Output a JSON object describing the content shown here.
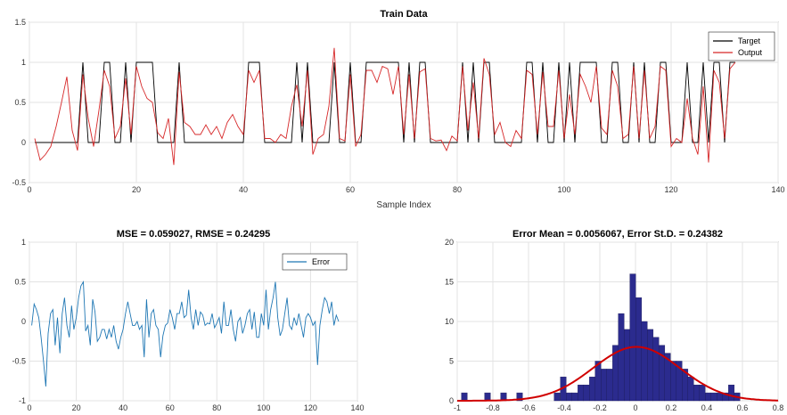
{
  "chart_data": [
    {
      "id": "train",
      "type": "line",
      "title": "Train Data",
      "xlabel": "Sample Index",
      "ylabel": "",
      "xlim": [
        0,
        140
      ],
      "ylim": [
        -0.5,
        1.5
      ],
      "xticks": [
        0,
        20,
        40,
        60,
        80,
        100,
        120,
        140
      ],
      "yticks": [
        -0.5,
        0,
        0.5,
        1,
        1.5
      ],
      "grid": true,
      "legend": "top-right",
      "series": [
        {
          "name": "Target",
          "color": "#000000",
          "values": [
            0,
            0,
            0,
            0,
            0,
            0,
            0,
            0,
            0,
            1,
            0,
            0,
            0,
            1,
            1,
            0,
            0,
            1,
            0,
            1,
            1,
            1,
            1,
            0,
            0,
            0,
            0,
            1,
            0,
            0,
            0,
            0,
            0,
            0,
            0,
            0,
            0,
            0,
            0,
            0,
            1,
            1,
            1,
            0,
            0,
            0,
            0,
            0,
            0,
            1,
            0,
            1,
            0,
            0,
            0,
            0,
            1,
            0,
            0,
            1,
            0,
            0,
            1,
            1,
            1,
            1,
            1,
            1,
            1,
            0,
            1,
            0,
            1,
            1,
            0,
            0,
            0,
            0,
            0,
            0,
            1,
            0,
            1,
            0,
            1,
            1,
            0,
            0,
            0,
            0,
            0,
            0,
            1,
            1,
            0,
            1,
            0,
            0,
            1,
            0,
            1,
            0,
            1,
            1,
            1,
            1,
            0,
            0,
            1,
            1,
            0,
            0,
            1,
            0,
            1,
            0,
            0,
            1,
            1,
            0,
            0,
            0,
            1,
            0,
            0,
            1,
            0,
            1,
            1,
            0,
            1,
            1
          ]
        },
        {
          "name": "Output",
          "color": "#d62728",
          "values": [
            0.05,
            -0.22,
            -0.15,
            -0.05,
            0.2,
            0.5,
            0.82,
            0.15,
            -0.1,
            0.85,
            0.3,
            -0.05,
            0.4,
            0.9,
            0.7,
            0.05,
            0.2,
            0.8,
            0.1,
            0.95,
            0.7,
            0.55,
            0.5,
            0.12,
            0.05,
            0.3,
            -0.28,
            0.88,
            0.25,
            0.2,
            0.1,
            0.1,
            0.22,
            0.1,
            0.2,
            0.05,
            0.25,
            0.35,
            0.2,
            0.1,
            0.9,
            0.75,
            0.9,
            0.05,
            0.05,
            0.0,
            0.1,
            0.05,
            0.45,
            0.72,
            0.2,
            0.9,
            -0.15,
            0.05,
            0.1,
            0.45,
            1.18,
            0.05,
            0.02,
            0.85,
            -0.05,
            0.1,
            0.9,
            0.9,
            0.75,
            0.95,
            0.92,
            0.6,
            0.95,
            0.1,
            0.85,
            0.05,
            0.88,
            0.92,
            0.05,
            0.02,
            0.03,
            -0.1,
            0.08,
            0.02,
            0.95,
            0.15,
            0.75,
            0.05,
            1.05,
            0.85,
            0.1,
            0.25,
            0.0,
            -0.05,
            0.15,
            0.05,
            0.9,
            0.85,
            0.1,
            0.88,
            0.2,
            0.2,
            0.9,
            0.05,
            0.6,
            0.1,
            0.85,
            0.7,
            0.5,
            0.95,
            0.18,
            0.1,
            0.9,
            0.7,
            0.05,
            0.1,
            0.95,
            0.05,
            0.9,
            0.05,
            0.2,
            0.95,
            0.9,
            -0.05,
            0.05,
            0.0,
            0.55,
            0.05,
            -0.15,
            0.7,
            -0.25,
            0.9,
            0.75,
            0.05,
            0.92,
            1.0
          ]
        }
      ]
    },
    {
      "id": "error",
      "type": "line",
      "title": "MSE = 0.059027, RMSE = 0.24295",
      "xlabel": "",
      "ylabel": "",
      "xlim": [
        0,
        140
      ],
      "ylim": [
        -1,
        1
      ],
      "xticks": [
        0,
        20,
        40,
        60,
        80,
        100,
        120,
        140
      ],
      "yticks": [
        -1,
        -0.5,
        0,
        0.5,
        1
      ],
      "grid": true,
      "legend": "top-right",
      "series": [
        {
          "name": "Error",
          "color": "#1f77b4",
          "values": [
            -0.05,
            0.22,
            0.15,
            0.05,
            -0.2,
            -0.5,
            -0.82,
            -0.15,
            0.1,
            0.15,
            -0.3,
            0.05,
            -0.4,
            0.1,
            0.3,
            -0.05,
            -0.2,
            0.2,
            -0.1,
            0.05,
            0.3,
            0.45,
            0.5,
            -0.12,
            -0.05,
            -0.3,
            0.28,
            0.12,
            -0.25,
            -0.2,
            -0.1,
            -0.1,
            -0.22,
            -0.1,
            -0.2,
            -0.05,
            -0.25,
            -0.35,
            -0.2,
            -0.1,
            0.1,
            0.25,
            0.1,
            -0.05,
            -0.05,
            0.0,
            -0.1,
            -0.05,
            -0.45,
            0.28,
            -0.2,
            0.1,
            0.15,
            -0.05,
            -0.1,
            -0.45,
            -0.18,
            -0.05,
            -0.02,
            0.15,
            0.05,
            -0.1,
            0.1,
            0.1,
            0.25,
            0.05,
            0.08,
            0.4,
            0.05,
            -0.1,
            0.15,
            -0.05,
            0.12,
            0.08,
            -0.05,
            -0.02,
            -0.03,
            0.1,
            -0.08,
            -0.02,
            0.05,
            -0.15,
            0.25,
            -0.05,
            -0.05,
            0.15,
            -0.1,
            -0.25,
            0.0,
            0.05,
            -0.15,
            -0.05,
            0.1,
            0.15,
            -0.1,
            0.12,
            -0.2,
            -0.2,
            0.1,
            -0.05,
            0.4,
            -0.1,
            0.15,
            0.3,
            0.5,
            0.05,
            -0.18,
            -0.1,
            0.1,
            0.3,
            -0.05,
            -0.1,
            0.05,
            -0.05,
            0.1,
            -0.05,
            -0.2,
            0.05,
            0.1,
            0.05,
            -0.05,
            0.0,
            -0.55,
            -0.05,
            0.15,
            0.3,
            0.25,
            0.1,
            0.25,
            -0.05,
            0.08,
            0.0
          ]
        }
      ]
    },
    {
      "id": "hist",
      "type": "bar",
      "title": "Error Mean = 0.0056067, Error St.D. = 0.24382",
      "xlabel": "",
      "ylabel": "",
      "xlim": [
        -1,
        0.8
      ],
      "ylim": [
        0,
        20
      ],
      "xticks": [
        -1,
        -0.8,
        -0.6,
        -0.4,
        -0.2,
        0,
        0.2,
        0.4,
        0.6,
        0.8
      ],
      "xticklabels": [
        "-1",
        "-0.8",
        "-0.6",
        "-0.4",
        "-0.2",
        "0",
        "0.2",
        "0.4",
        "0.6",
        "0.8"
      ],
      "yticks": [
        0,
        5,
        10,
        15,
        20
      ],
      "grid": true,
      "bin_width": 0.0325,
      "bar_color": "#2b2b8e",
      "bins": [
        {
          "x": -0.96,
          "count": 1
        },
        {
          "x": -0.83,
          "count": 1
        },
        {
          "x": -0.74,
          "count": 1
        },
        {
          "x": -0.65,
          "count": 1
        },
        {
          "x": -0.44,
          "count": 1
        },
        {
          "x": -0.405,
          "count": 3
        },
        {
          "x": -0.372,
          "count": 1
        },
        {
          "x": -0.34,
          "count": 1
        },
        {
          "x": -0.307,
          "count": 2
        },
        {
          "x": -0.275,
          "count": 2
        },
        {
          "x": -0.242,
          "count": 3
        },
        {
          "x": -0.21,
          "count": 5
        },
        {
          "x": -0.177,
          "count": 4
        },
        {
          "x": -0.145,
          "count": 4
        },
        {
          "x": -0.112,
          "count": 7
        },
        {
          "x": -0.08,
          "count": 11
        },
        {
          "x": -0.047,
          "count": 9
        },
        {
          "x": -0.015,
          "count": 16
        },
        {
          "x": 0.018,
          "count": 13
        },
        {
          "x": 0.05,
          "count": 10
        },
        {
          "x": 0.083,
          "count": 9
        },
        {
          "x": 0.115,
          "count": 8
        },
        {
          "x": 0.148,
          "count": 7
        },
        {
          "x": 0.18,
          "count": 6
        },
        {
          "x": 0.213,
          "count": 5
        },
        {
          "x": 0.245,
          "count": 5
        },
        {
          "x": 0.278,
          "count": 4
        },
        {
          "x": 0.31,
          "count": 3
        },
        {
          "x": 0.343,
          "count": 2
        },
        {
          "x": 0.375,
          "count": 2
        },
        {
          "x": 0.408,
          "count": 1
        },
        {
          "x": 0.44,
          "count": 1
        },
        {
          "x": 0.473,
          "count": 1
        },
        {
          "x": 0.505,
          "count": 1
        },
        {
          "x": 0.538,
          "count": 2
        },
        {
          "x": 0.57,
          "count": 1
        }
      ],
      "fit_curve": {
        "color": "#d00000",
        "mean": 0.0056067,
        "std": 0.24382,
        "peak": 6.8
      }
    }
  ]
}
